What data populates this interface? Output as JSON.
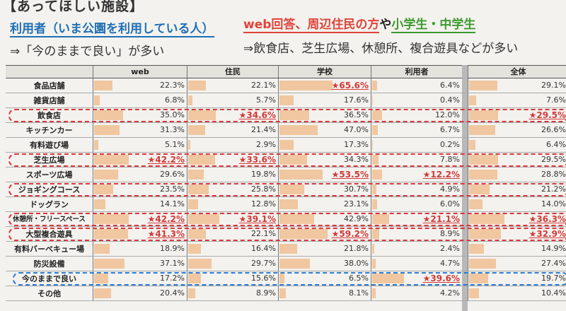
{
  "header": {
    "title": "【あってほしい施設】",
    "left_heading": "利用者（いま公園を利用している人）",
    "left_sub": "⇒「今のままで良い」が多い",
    "right_heading_parts": [
      "web回答、周辺住民の方",
      "や",
      "小学生・中学生"
    ],
    "right_sub": "⇒飲食店、芝生広場、休憩所、複合遊具などが多い"
  },
  "table": {
    "columns": [
      "web",
      "住民",
      "学校",
      "利用者",
      "全体"
    ],
    "rows": [
      {
        "label": "食品店舗",
        "values": [
          "22.3%",
          "22.1%",
          "★65.6%",
          "6.4%",
          "29.1%"
        ],
        "nums": [
          22.3,
          22.1,
          65.6,
          6.4,
          29.1
        ],
        "hl": [
          false,
          false,
          true,
          false,
          false
        ]
      },
      {
        "label": "雑貨店舗",
        "values": [
          "6.8%",
          "5.7%",
          "17.6%",
          "0.4%",
          "7.6%"
        ],
        "nums": [
          6.8,
          5.7,
          17.6,
          0.4,
          7.6
        ],
        "hl": [
          false,
          false,
          false,
          false,
          false
        ]
      },
      {
        "label": "飲食店",
        "values": [
          "35.0%",
          "★34.6%",
          "36.5%",
          "12.0%",
          "★29.5%"
        ],
        "nums": [
          35.0,
          34.6,
          36.5,
          12.0,
          29.5
        ],
        "hl": [
          false,
          true,
          false,
          false,
          true
        ]
      },
      {
        "label": "キッチンカー",
        "values": [
          "31.3%",
          "21.4%",
          "47.0%",
          "6.7%",
          "26.6%"
        ],
        "nums": [
          31.3,
          21.4,
          47.0,
          6.7,
          26.6
        ],
        "hl": [
          false,
          false,
          false,
          false,
          false
        ]
      },
      {
        "label": "有料遊び場",
        "values": [
          "5.1%",
          "2.9%",
          "17.3%",
          "0.2%",
          "6.4%"
        ],
        "nums": [
          5.1,
          2.9,
          17.3,
          0.2,
          6.4
        ],
        "hl": [
          false,
          false,
          false,
          false,
          false
        ]
      },
      {
        "label": "芝生広場",
        "values": [
          "★42.2%",
          "★33.6%",
          "34.3%",
          "7.8%",
          "29.5%"
        ],
        "nums": [
          42.2,
          33.6,
          34.3,
          7.8,
          29.5
        ],
        "hl": [
          true,
          true,
          false,
          false,
          false
        ]
      },
      {
        "label": "スポーツ広場",
        "values": [
          "29.6%",
          "19.8%",
          "★53.5%",
          "★12.2%",
          "28.8%"
        ],
        "nums": [
          29.6,
          19.8,
          53.5,
          12.2,
          28.8
        ],
        "hl": [
          false,
          false,
          true,
          true,
          false
        ]
      },
      {
        "label": "ジョギングコース",
        "values": [
          "23.5%",
          "25.8%",
          "30.7%",
          "4.9%",
          "21.2%"
        ],
        "nums": [
          23.5,
          25.8,
          30.7,
          4.9,
          21.2
        ],
        "hl": [
          false,
          false,
          false,
          false,
          false
        ]
      },
      {
        "label": "ドッグラン",
        "values": [
          "14.1%",
          "12.8%",
          "23.1%",
          "6.0%",
          "14.0%"
        ],
        "nums": [
          14.1,
          12.8,
          23.1,
          6.0,
          14.0
        ],
        "hl": [
          false,
          false,
          false,
          false,
          false
        ]
      },
      {
        "label": "休憩所・フリースペース",
        "values": [
          "★42.2%",
          "★39.1%",
          "42.9%",
          "★21.1%",
          "★36.3%"
        ],
        "nums": [
          42.2,
          39.1,
          42.9,
          21.1,
          36.3
        ],
        "hl": [
          true,
          true,
          false,
          true,
          true
        ]
      },
      {
        "label": "大型複合遊具",
        "values": [
          "★41.3%",
          "22.1%",
          "★59.2%",
          "8.9%",
          "★32.9%"
        ],
        "nums": [
          41.3,
          22.1,
          59.2,
          8.9,
          32.9
        ],
        "hl": [
          true,
          false,
          true,
          false,
          true
        ]
      },
      {
        "label": "有料バーベキュー場",
        "values": [
          "18.9%",
          "16.4%",
          "21.8%",
          "2.4%",
          "14.9%"
        ],
        "nums": [
          18.9,
          16.4,
          21.8,
          2.4,
          14.9
        ],
        "hl": [
          false,
          false,
          false,
          false,
          false
        ]
      },
      {
        "label": "防災設備",
        "values": [
          "37.1%",
          "29.7%",
          "38.0%",
          "4.7%",
          "27.4%"
        ],
        "nums": [
          37.1,
          29.7,
          38.0,
          4.7,
          27.4
        ],
        "hl": [
          false,
          false,
          false,
          false,
          false
        ]
      },
      {
        "label": "今のままで良い",
        "values": [
          "17.2%",
          "15.6%",
          "6.5%",
          "★39.6%",
          "19.7%"
        ],
        "nums": [
          17.2,
          15.6,
          6.5,
          39.6,
          19.7
        ],
        "hl": [
          false,
          false,
          false,
          true,
          false
        ]
      },
      {
        "label": "その他",
        "values": [
          "20.4%",
          "8.9%",
          "8.1%",
          "4.2%",
          "10.4%"
        ],
        "nums": [
          20.4,
          8.9,
          8.1,
          4.2,
          10.4
        ],
        "hl": [
          false,
          false,
          false,
          false,
          false
        ]
      }
    ],
    "red_boxed_rows": [
      "飲食店",
      "芝生広場",
      "ジョギングコース",
      "休憩所・フリースペース",
      "大型複合遊具"
    ],
    "blue_boxed_rows": [
      "今のままで良い"
    ],
    "colors": {
      "bar": "#f0c7a0",
      "highlight": "#d23a3a",
      "red_box": "#d9363e",
      "blue_box": "#2a7ad2",
      "accent_blue": "#1f6fb5",
      "accent_red": "#e0443a",
      "accent_green": "#3d9a2f"
    }
  }
}
